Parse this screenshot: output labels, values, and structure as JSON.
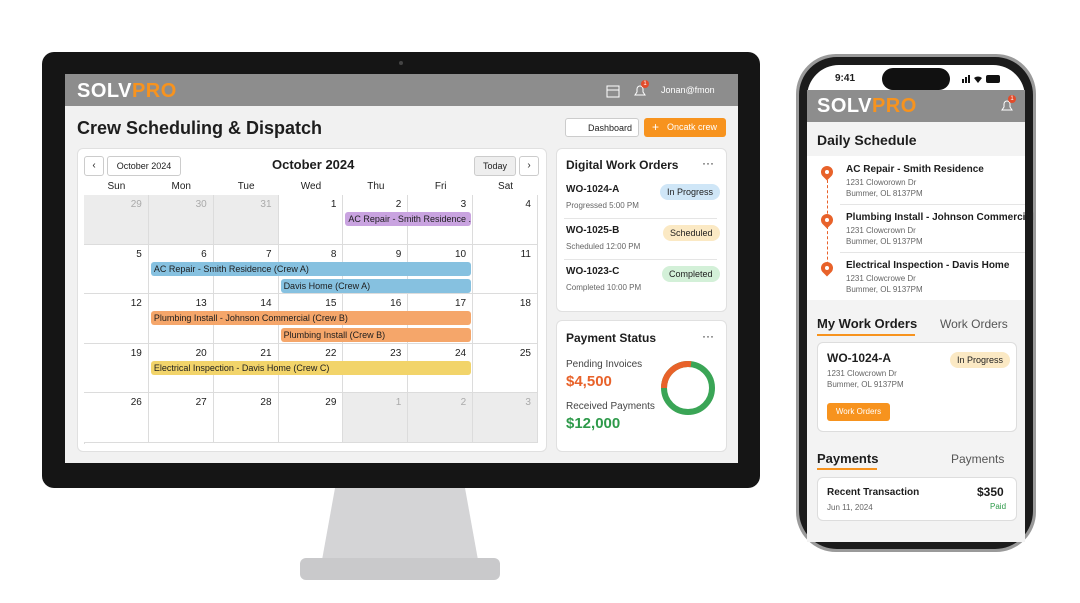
{
  "desktop": {
    "header": {
      "brand": "SOLVPRO",
      "badge": "1",
      "user": "Jonan@fmon"
    },
    "title": "Crew Scheduling & Dispatch",
    "buttons": [
      "Dashboard",
      "Oncatk crew"
    ],
    "calendar": {
      "month_button": "October 2024",
      "title": "October 2024",
      "today": "Today",
      "weekdays": [
        "Sun",
        "Mon",
        "Tue",
        "Wed",
        "Thu",
        "Fri",
        "Sat"
      ],
      "weeks": [
        [
          29,
          30,
          31,
          1,
          2,
          3,
          4
        ],
        [
          5,
          6,
          7,
          8,
          9,
          10,
          11
        ],
        [
          12,
          13,
          14,
          15,
          16,
          17,
          18
        ],
        [
          19,
          20,
          21,
          22,
          23,
          24,
          25
        ],
        [
          26,
          27,
          28,
          29,
          1,
          2,
          3
        ]
      ],
      "events": [
        "AC Repair - Smith Residence ...",
        "AC Repair - Smith Residence (Crew A)",
        "Davis Home (Crew A)",
        "Plumbing Install - Johnson Commercial (Crew B)",
        "Plumbing Install (Crew B)",
        "Electrical Inspection - Davis Home (Crew C)"
      ]
    },
    "work_orders": {
      "title": "Digital Work Orders",
      "items": [
        {
          "id": "WO-1024-A",
          "status": "In Progress",
          "detail": "Progressed 5:00 PM"
        },
        {
          "id": "WO-1025-B",
          "status": "Scheduled",
          "detail": "Scheduled 12:00 PM"
        },
        {
          "id": "WO-1023-C",
          "status": "Completed",
          "detail": "Completed 10:00 PM"
        }
      ]
    },
    "payment": {
      "title": "Payment Status",
      "pending_label": "Pending Invoices",
      "pending": "$4,500",
      "received_label": "Received Payments",
      "received": "$12,000"
    }
  },
  "phone": {
    "time": "9:41",
    "brand": "SOLVPRO",
    "badge": "1",
    "schedule_title": "Daily Schedule",
    "schedule": [
      {
        "title": "AC Repair - Smith Residence",
        "line1": "1231 Cloworown Dr",
        "line2": "Bummer, OL 8137PM"
      },
      {
        "title": "Plumbing Install - Johnson Commercial",
        "line1": "1231 Clowcrown Dr",
        "line2": "Bummer, OL 9137PM"
      },
      {
        "title": "Electrical Inspection - Davis Home",
        "line1": "1231 Clowcrowe Dr",
        "line2": "Bummer, OL 9137PM"
      }
    ],
    "tabs": [
      "My Work Orders",
      "Work Orders"
    ],
    "card": {
      "id": "WO-1024-A",
      "status": "In Progress",
      "line1": "1231 Clowcrown Dr",
      "line2": "Bummer, OL 9137PM",
      "button": "Work Orders"
    },
    "payment_tabs": [
      "Payments",
      "Payments"
    ],
    "transaction": {
      "label": "Recent Transaction",
      "amount": "$350",
      "date": "Jun 11, 2024",
      "status": "Paid"
    }
  }
}
